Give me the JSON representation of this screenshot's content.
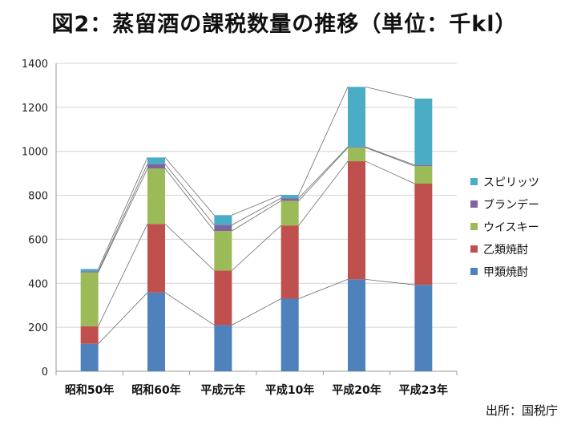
{
  "page": {
    "title": "図2：蒸留酒の課税数量の推移（単位：千kl）",
    "source": "出所：国税庁"
  },
  "chart_data": {
    "type": "bar",
    "stacked": true,
    "title": "図2：蒸留酒の課税数量の推移（単位：千kl）",
    "categories": [
      "昭和50年",
      "昭和60年",
      "平成元年",
      "平成10年",
      "平成20年",
      "平成23年"
    ],
    "series": [
      {
        "name": "甲類焼酎",
        "color": "#4F81BD",
        "values": [
          125,
          358,
          210,
          330,
          418,
          393
        ]
      },
      {
        "name": "乙類焼酎",
        "color": "#C0504D",
        "values": [
          80,
          312,
          248,
          333,
          537,
          460
        ]
      },
      {
        "name": "ウイスキー",
        "color": "#9BBB59",
        "values": [
          245,
          252,
          180,
          112,
          62,
          80
        ]
      },
      {
        "name": "ブランデー",
        "color": "#8064A2",
        "values": [
          5,
          20,
          27,
          12,
          3,
          5
        ]
      },
      {
        "name": "スピリッツ",
        "color": "#4BACC6",
        "values": [
          10,
          30,
          45,
          15,
          273,
          302
        ]
      }
    ],
    "ylim": [
      0,
      1400
    ],
    "yticks": [
      0,
      200,
      400,
      600,
      800,
      1000,
      1200,
      1400
    ],
    "grid": true,
    "legend": "right",
    "legend_order": [
      "スピリッツ",
      "ブランデー",
      "ウイスキー",
      "乙類焼酎",
      "甲類焼酎"
    ],
    "connector_lines": true
  }
}
